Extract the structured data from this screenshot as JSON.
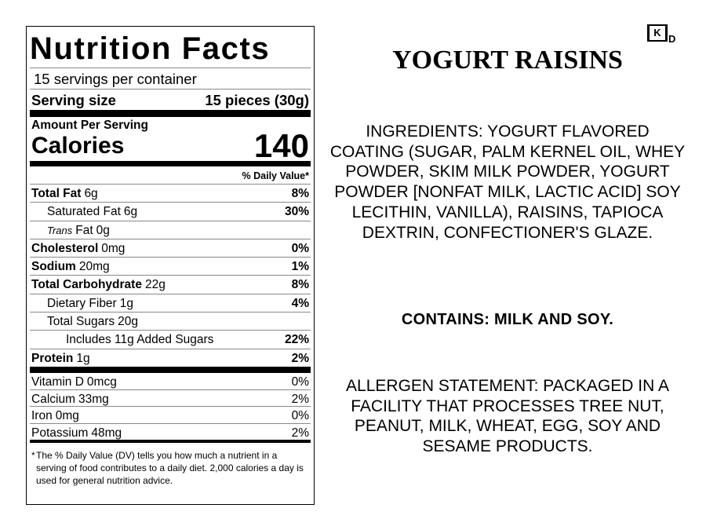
{
  "label": {
    "title": "Nutrition Facts",
    "servings": "15 servings per container",
    "serving_size_label": "Serving size",
    "serving_size": "15 pieces (30g)",
    "amount_per_serving": "Amount Per Serving",
    "calories_label": "Calories",
    "calories": 140,
    "dv_header": "% Daily Value*",
    "nutrients": [
      {
        "name": "Total Fat",
        "amount": "6g",
        "dv": "8%"
      },
      {
        "name": "Saturated Fat",
        "amount": "6g",
        "dv": "30%"
      },
      {
        "name_italic": "Trans",
        "name": "Fat",
        "amount": "0g"
      },
      {
        "name": "Cholesterol",
        "amount": "0mg",
        "dv": "0%"
      },
      {
        "name": "Sodium",
        "amount": "20mg",
        "dv": "1%"
      },
      {
        "name": "Total Carbohydrate",
        "amount": "22g",
        "dv": "8%"
      },
      {
        "name": "Dietary Fiber",
        "amount": "1g",
        "dv": "4%"
      },
      {
        "name": "Total Sugars",
        "amount": "20g"
      },
      {
        "name": "Includes 11g Added Sugars",
        "dv": "22%"
      },
      {
        "name": "Protein",
        "amount": "1g",
        "dv": "2%"
      }
    ],
    "vitamins": [
      {
        "name": "Vitamin D",
        "amount": "0mcg",
        "dv": "0%"
      },
      {
        "name": "Calcium",
        "amount": "33mg",
        "dv": "2%"
      },
      {
        "name": "Iron",
        "amount": "0mg",
        "dv": "0%"
      },
      {
        "name": "Potassium",
        "amount": "48mg",
        "dv": "2%"
      }
    ],
    "footnote_mark": "*",
    "footnote": "The % Daily Value (DV) tells you how much a nutrient in a serving of food contributes to a daily diet. 2,000 calories a day is used for general nutrition advice."
  },
  "product": {
    "title": "YOGURT RAISINS",
    "ingredients": "INGREDIENTS: YOGURT FLAVORED COATING (SUGAR, PALM KERNEL OIL, WHEY POWDER, SKIM MILK POWDER, YOGURT POWDER [NONFAT MILK, LACTIC ACID] SOY LECITHIN, VANILLA), RAISINS, TAPIOCA DEXTRIN, CONFECTIONER'S GLAZE.",
    "contains": "CONTAINS: MILK AND SOY.",
    "allergen": "ALLERGEN STATEMENT: PACKAGED IN A FACILITY THAT PROCESSES TREE NUT, PEANUT, MILK, WHEAT, EGG, SOY AND SESAME PRODUCTS.",
    "kosher": {
      "symbol": "K",
      "suffix": "D"
    }
  }
}
